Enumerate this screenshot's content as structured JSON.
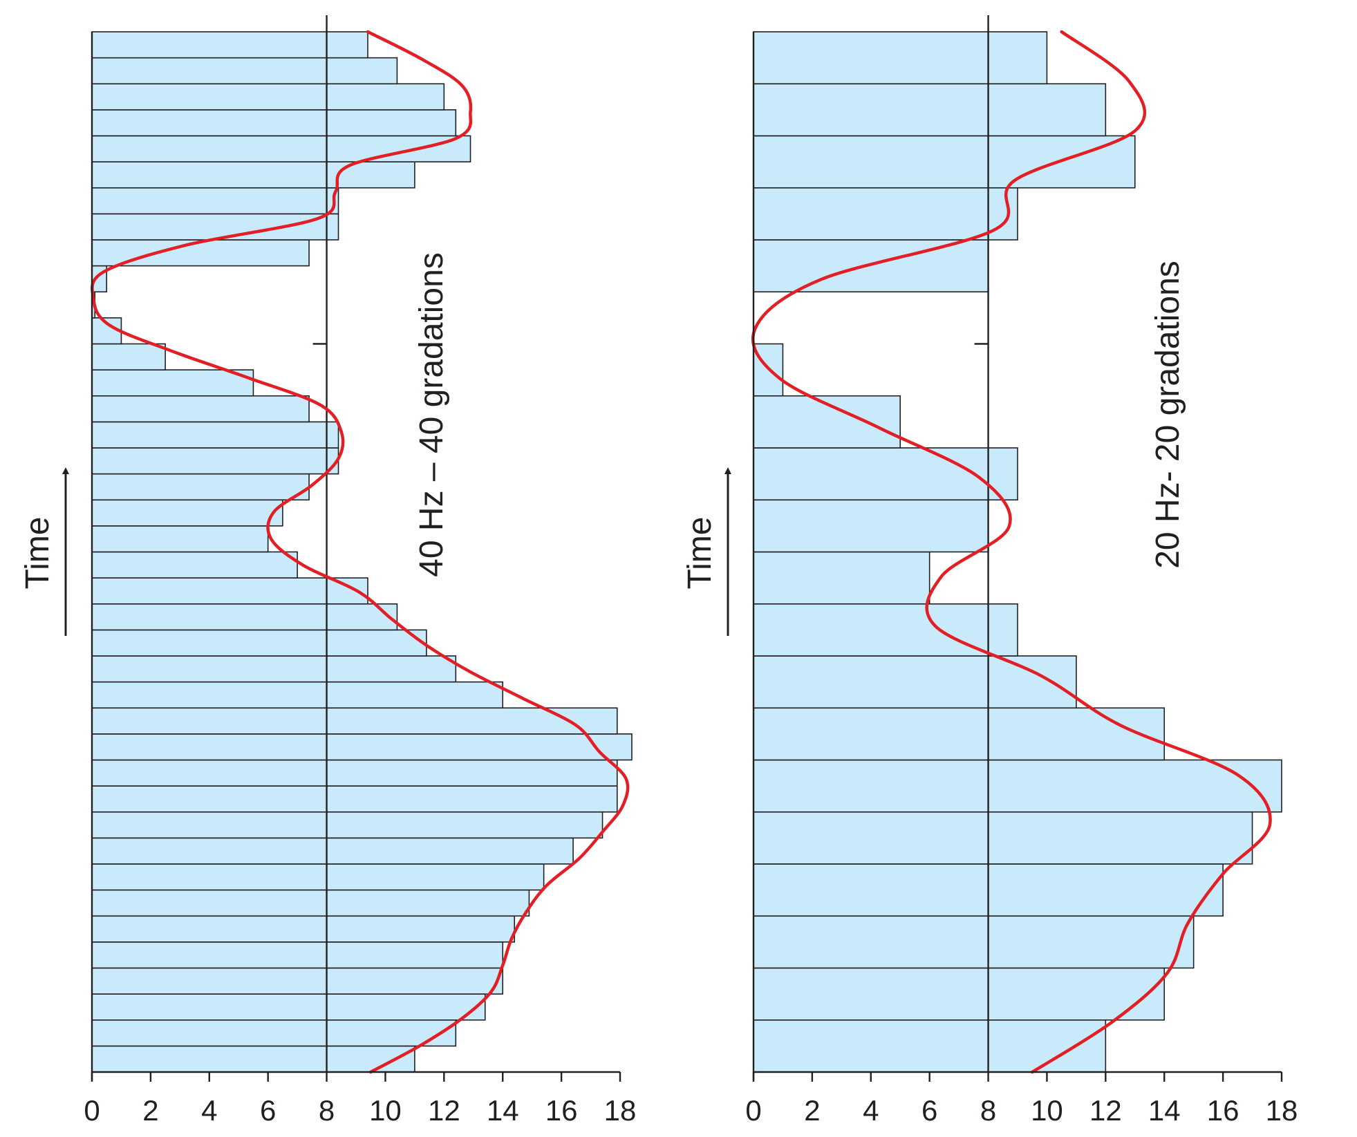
{
  "chart_data": [
    {
      "type": "bar",
      "orientation": "horizontal",
      "title": "40 Hz – 40 gradations",
      "time_label": "Time",
      "xlim": [
        0,
        18
      ],
      "x_ticks": [
        "0",
        "2",
        "4",
        "6",
        "8",
        "10",
        "12",
        "14",
        "16",
        "18"
      ],
      "reference_line": 8,
      "bars_bottom_to_top": [
        11,
        12.4,
        13.4,
        14,
        14,
        14.4,
        14.9,
        15.4,
        16.4,
        17.4,
        17.9,
        17.9,
        18.4,
        17.9,
        14,
        12.4,
        11.4,
        10.4,
        9.4,
        7,
        6,
        6.5,
        7.4,
        8.4,
        8.4,
        7.4,
        5.5,
        2.5,
        1,
        0.1,
        0.5,
        7.4,
        8.4,
        8.4,
        11,
        12.9,
        12.4,
        12,
        10.4,
        9.4
      ],
      "curve": {
        "color": "#e31e24",
        "x_vs_time_bottom_to_top": [
          9.5,
          11.2,
          12.6,
          13.6,
          14,
          14.3,
          14.8,
          15.5,
          16.6,
          17.4,
          18.1,
          18.2,
          17.3,
          16.5,
          14.7,
          12.9,
          11.4,
          10.2,
          9.1,
          7.2,
          6.1,
          6.2,
          7.5,
          8.4,
          8.5,
          7.8,
          5.4,
          2.8,
          0.6,
          0.05,
          0.4,
          3.2,
          7.7,
          8.3,
          8.8,
          12.4,
          12.9,
          12.6,
          11.2,
          9.4
        ]
      }
    },
    {
      "type": "bar",
      "orientation": "horizontal",
      "title": "20 Hz- 20 gradations",
      "time_label": "Time",
      "xlim": [
        0,
        18
      ],
      "x_ticks": [
        "0",
        "2",
        "4",
        "6",
        "8",
        "10",
        "12",
        "14",
        "16",
        "18"
      ],
      "reference_line": 8,
      "bars_bottom_to_top": [
        12,
        14,
        15,
        16,
        17,
        18,
        14,
        11,
        9,
        6,
        8,
        9,
        5,
        1,
        0,
        8,
        9,
        13,
        12,
        10
      ],
      "curve": {
        "color": "#e31e24",
        "x_vs_time_bottom_to_top": [
          9.5,
          12.2,
          14.1,
          14.8,
          16,
          17.6,
          16.5,
          12.5,
          9.8,
          6.2,
          6.4,
          8.7,
          7.7,
          4.3,
          0.9,
          0.05,
          2.3,
          8.2,
          8.9,
          13,
          12.8,
          10.5
        ]
      }
    }
  ]
}
